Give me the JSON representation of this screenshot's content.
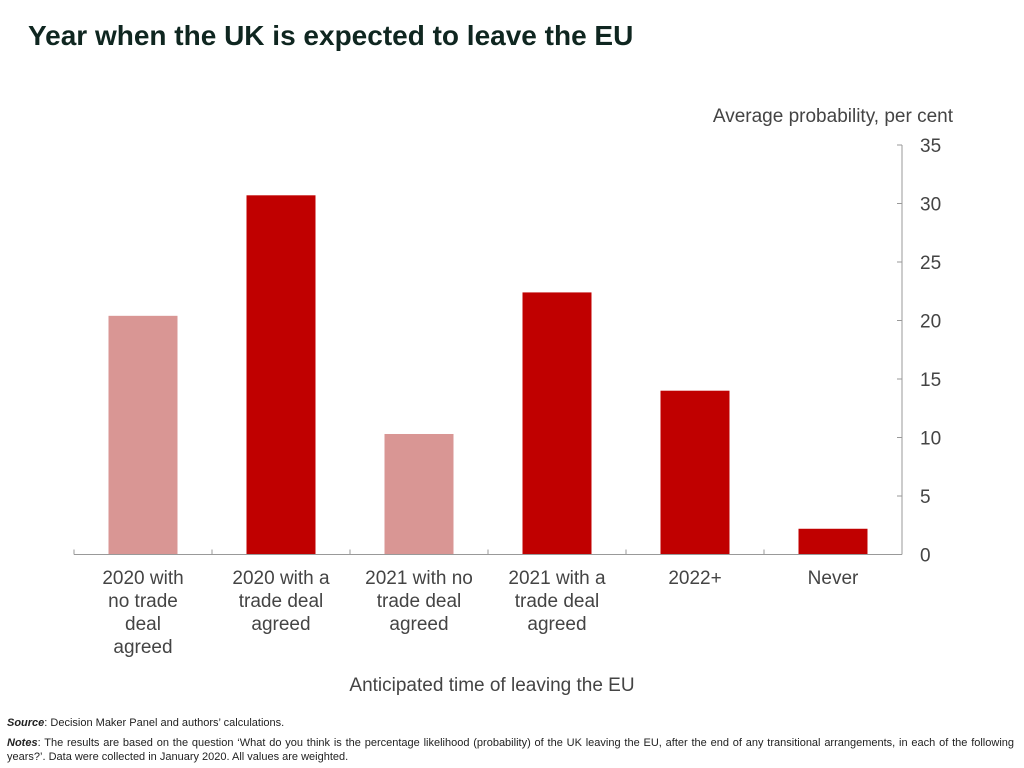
{
  "title": "Year when the UK is expected to leave the EU",
  "footer": {
    "source_label": "Source",
    "source_text": ": Decision Maker Panel and authors’ calculations.",
    "notes_label": "Notes",
    "notes_text": ": The results are based on the question ‘What do you think is the percentage likelihood (probability) of the UK leaving the EU, after the end of any transitional arrangements, in each of the following years?’. Data were collected in January 2020.  All values are weighted."
  },
  "chart_data": {
    "type": "bar",
    "title": "Year when the UK is expected to leave the EU",
    "xlabel": "Anticipated time of leaving the EU",
    "ylabel": "Average probability, per cent",
    "categories": [
      "2020 with no trade deal agreed",
      "2020 with a trade deal agreed",
      "2021 with no trade deal agreed",
      "2021 with a trade deal agreed",
      "2022+",
      "Never"
    ],
    "values": [
      20.4,
      30.7,
      10.3,
      22.4,
      14.0,
      2.2
    ],
    "colors": [
      "#d99694",
      "#c00000",
      "#d99694",
      "#c00000",
      "#c00000",
      "#c00000"
    ],
    "ylim": [
      0,
      35
    ],
    "yticks": [
      0,
      5,
      10,
      15,
      20,
      25,
      30,
      35
    ],
    "y_axis_side": "right",
    "grid": false,
    "legend": "none"
  }
}
